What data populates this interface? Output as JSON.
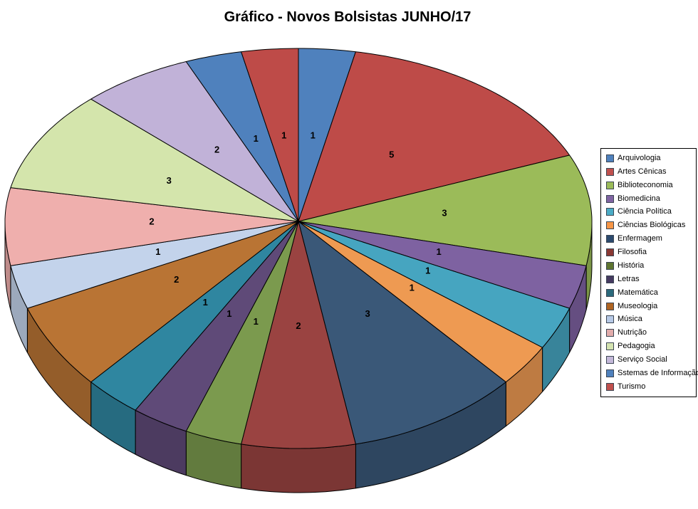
{
  "background": "#FFFFFF",
  "chart_data": {
    "type": "pie",
    "projection": "3d",
    "title": "Gráfico - Novos Bolsistas JUNHO/17",
    "total": 32,
    "data_labels": "value",
    "legend_position": "right",
    "start_angle_deg": 0,
    "direction": "clockwise",
    "categories": [
      {
        "label": "Arquivologia",
        "value": 1,
        "color": "#4F81BD",
        "legend_color": "#4F81BD"
      },
      {
        "label": "Artes Cênicas",
        "value": 5,
        "color": "#BE4B48",
        "legend_color": "#C0504D"
      },
      {
        "label": "Biblioteconomia",
        "value": 3,
        "color": "#9BBB59",
        "legend_color": "#9BBB59"
      },
      {
        "label": "Biomedicina",
        "value": 1,
        "color": "#7E62A1",
        "legend_color": "#8064A2"
      },
      {
        "label": "Ciência Política",
        "value": 1,
        "color": "#46A5C0",
        "legend_color": "#4BACC6"
      },
      {
        "label": "Ciências Biológicas",
        "value": 1,
        "color": "#EE9A52",
        "legend_color": "#F79646"
      },
      {
        "label": "Enfermagem",
        "value": 3,
        "color": "#3A5878",
        "legend_color": "#2C4A6E"
      },
      {
        "label": "Filosofia",
        "value": 2,
        "color": "#9A4341",
        "legend_color": "#8A3833"
      },
      {
        "label": "História",
        "value": 1,
        "color": "#7B9A4E",
        "legend_color": "#5E7530"
      },
      {
        "label": "Letras",
        "value": 1,
        "color": "#5F4A78",
        "legend_color": "#463A60"
      },
      {
        "label": "Matemática",
        "value": 1,
        "color": "#2F86A0",
        "legend_color": "#2B6A7C"
      },
      {
        "label": "Museologia",
        "value": 2,
        "color": "#B97434",
        "legend_color": "#AF6421"
      },
      {
        "label": "Música",
        "value": 1,
        "color": "#C3D3EB",
        "legend_color": "#B7C9E6"
      },
      {
        "label": "Nutrição",
        "value": 2,
        "color": "#EFAFAD",
        "legend_color": "#E2ACAB"
      },
      {
        "label": "Pedagogia",
        "value": 3,
        "color": "#D4E5AC",
        "legend_color": "#D4E3B0"
      },
      {
        "label": "Serviço Social",
        "value": 2,
        "color": "#C1B2D8",
        "legend_color": "#C4B8D9"
      },
      {
        "label": "Sstemas de Informação",
        "value": 1,
        "color": "#4F81BD",
        "legend_color": "#4F81BD"
      },
      {
        "label": "Turismo",
        "value": 1,
        "color": "#BE4B48",
        "legend_color": "#C0504D"
      }
    ]
  },
  "legend": {
    "border_color": "#000000",
    "background": "#FFFFFF",
    "swatch_border": "#3C4653"
  },
  "pie_style": {
    "outline_color": "#000000",
    "side_shade_factor": 0.8
  }
}
